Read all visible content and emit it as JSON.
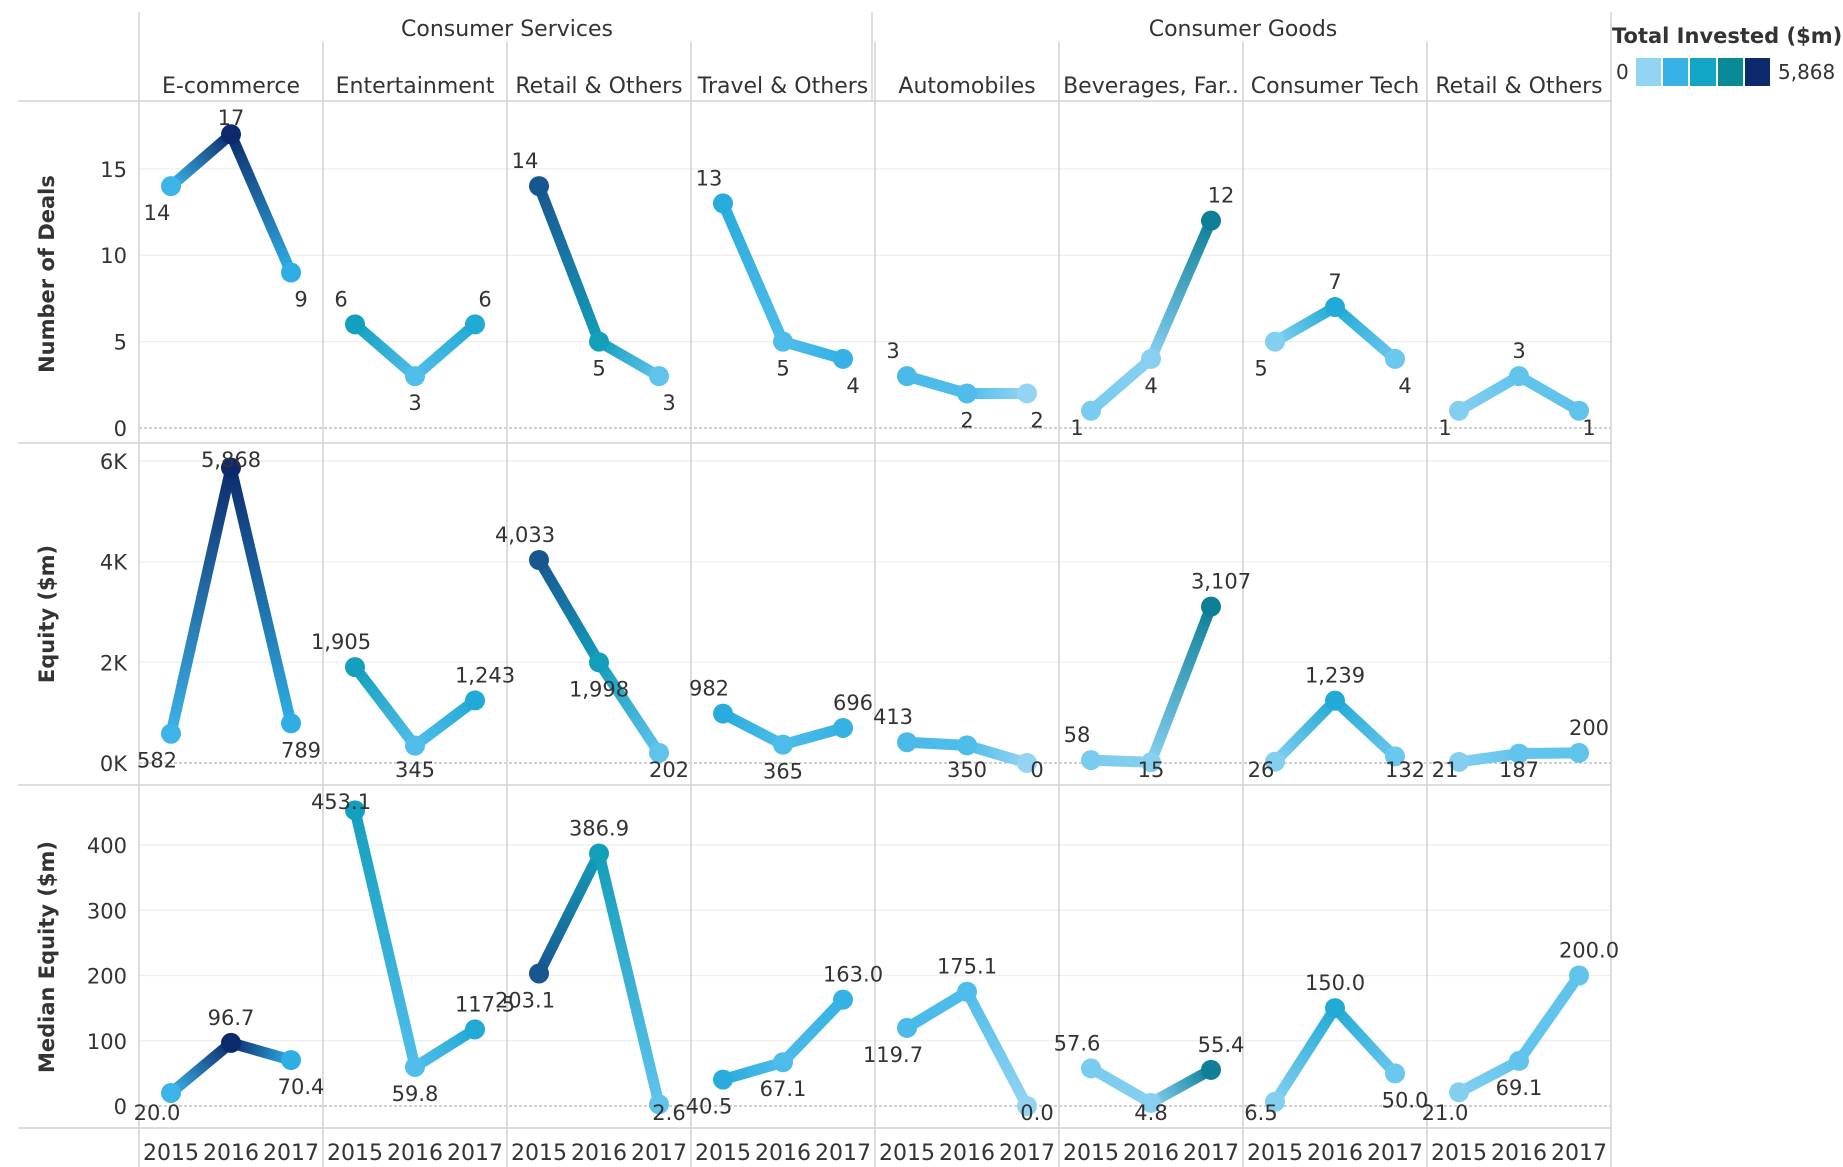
{
  "legend": {
    "title": "Total Invested ($m)",
    "min_label": "0",
    "max_label": "5,868",
    "colors": [
      "#93d4f2",
      "#36b2e6",
      "#12a6c6",
      "#0a8a96",
      "#0c2a6b"
    ]
  },
  "colors": {
    "scale": [
      "#93d4f2",
      "#5cc2ec",
      "#2eaee4",
      "#16a6c9",
      "#0b8d9a",
      "#1a4f8f",
      "#0c2a6b"
    ],
    "grid": "#eeeeee",
    "divider": "#d2d2d2",
    "zero_line": "#b5b5b5",
    "text": "#333333"
  },
  "chart_data": {
    "type": "line",
    "title": "",
    "years": [
      "2015",
      "2016",
      "2017"
    ],
    "groups": [
      {
        "name": "Consumer Services",
        "categories": [
          "E-commerce",
          "Entertainment",
          "Retail & Others",
          "Travel & Others"
        ]
      },
      {
        "name": "Consumer Goods",
        "categories": [
          "Automobiles",
          "Beverages, Far..",
          "Consumer Tech",
          "Retail & Others"
        ]
      }
    ],
    "measures": [
      {
        "name": "Number of Deals",
        "ylim": [
          0,
          18
        ],
        "ticks": [
          0,
          5,
          10,
          15
        ],
        "tick_labels": [
          "0",
          "5",
          "10",
          "15"
        ]
      },
      {
        "name": "Equity ($m)",
        "ylim": [
          0,
          6000
        ],
        "ticks": [
          0,
          2000,
          4000,
          6000
        ],
        "tick_labels": [
          "0K",
          "2K",
          "4K",
          "6K"
        ]
      },
      {
        "name": "Median Equity ($m)",
        "ylim": [
          0,
          470
        ],
        "ticks": [
          0,
          100,
          200,
          300,
          400
        ],
        "tick_labels": [
          "0",
          "100",
          "200",
          "300",
          "400"
        ]
      }
    ],
    "color_legend": {
      "name": "Total Invested ($m)",
      "min": 0,
      "max": 5868
    },
    "panels": [
      {
        "category": "E-commerce",
        "color_values": [
          582,
          5868,
          789
        ],
        "deals": {
          "values": [
            14,
            17,
            9
          ],
          "labels": [
            "14",
            "17",
            "9"
          ]
        },
        "equity": {
          "values": [
            582,
            5868,
            789
          ],
          "labels": [
            "582",
            "5,868",
            "789"
          ]
        },
        "median": {
          "values": [
            20.0,
            96.7,
            70.4
          ],
          "labels": [
            "20.0",
            "96.7",
            "70.4"
          ]
        }
      },
      {
        "category": "Entertainment",
        "color_values": [
          1905,
          345,
          1243
        ],
        "deals": {
          "values": [
            6,
            3,
            6
          ],
          "labels": [
            "6",
            "3",
            "6"
          ]
        },
        "equity": {
          "values": [
            1905,
            345,
            1243
          ],
          "labels": [
            "1,905",
            "345",
            "1,243"
          ]
        },
        "median": {
          "values": [
            453.1,
            59.8,
            117.5
          ],
          "labels": [
            "453.1",
            "59.8",
            "117.5"
          ]
        }
      },
      {
        "category": "Retail & Others",
        "color_values": [
          4033,
          1998,
          202
        ],
        "deals": {
          "values": [
            14,
            5,
            3
          ],
          "labels": [
            "14",
            "5",
            "3"
          ]
        },
        "equity": {
          "values": [
            4033,
            1998,
            202
          ],
          "labels": [
            "4,033",
            "1,998",
            "202"
          ]
        },
        "median": {
          "values": [
            203.1,
            386.9,
            2.6
          ],
          "labels": [
            "203.1",
            "386.9",
            "2.6"
          ]
        }
      },
      {
        "category": "Travel & Others",
        "color_values": [
          982,
          365,
          696
        ],
        "deals": {
          "values": [
            13,
            5,
            4
          ],
          "labels": [
            "13",
            "5",
            "4"
          ]
        },
        "equity": {
          "values": [
            982,
            365,
            696
          ],
          "labels": [
            "982",
            "365",
            "696"
          ]
        },
        "median": {
          "values": [
            40.5,
            67.1,
            163.0
          ],
          "labels": [
            "40.5",
            "67.1",
            "163.0"
          ]
        }
      },
      {
        "category": "Automobiles",
        "color_values": [
          413,
          350,
          0
        ],
        "deals": {
          "values": [
            3,
            2,
            2
          ],
          "labels": [
            "3",
            "2",
            "2"
          ]
        },
        "equity": {
          "values": [
            413,
            350,
            0
          ],
          "labels": [
            "413",
            "350",
            "0"
          ]
        },
        "median": {
          "values": [
            119.7,
            175.1,
            0.0
          ],
          "labels": [
            "119.7",
            "175.1",
            "0.0"
          ]
        }
      },
      {
        "category": "Beverages, Far..",
        "color_values": [
          58,
          15,
          3107
        ],
        "deals": {
          "values": [
            1,
            4,
            12
          ],
          "labels": [
            "1",
            "4",
            "12"
          ]
        },
        "equity": {
          "values": [
            58,
            15,
            3107
          ],
          "labels": [
            "58",
            "15",
            "3,107"
          ]
        },
        "median": {
          "values": [
            57.6,
            4.8,
            55.4
          ],
          "labels": [
            "57.6",
            "4.8",
            "55.4"
          ]
        }
      },
      {
        "category": "Consumer Tech",
        "color_values": [
          26,
          1239,
          132
        ],
        "deals": {
          "values": [
            5,
            7,
            4
          ],
          "labels": [
            "5",
            "7",
            "4"
          ]
        },
        "equity": {
          "values": [
            26,
            1239,
            132
          ],
          "labels": [
            "26",
            "1,239",
            "132"
          ]
        },
        "median": {
          "values": [
            6.5,
            150.0,
            50.0
          ],
          "labels": [
            "6.5",
            "150.0",
            "50.0"
          ]
        }
      },
      {
        "category": "Retail & Others",
        "color_values": [
          21,
          187,
          200
        ],
        "deals": {
          "values": [
            1,
            3,
            1
          ],
          "labels": [
            "1",
            "3",
            "1"
          ]
        },
        "equity": {
          "values": [
            21,
            187,
            200
          ],
          "labels": [
            "21",
            "187",
            "200"
          ]
        },
        "median": {
          "values": [
            21.0,
            69.1,
            200.0
          ],
          "labels": [
            "21.0",
            "69.1",
            "200.0"
          ]
        }
      }
    ]
  }
}
